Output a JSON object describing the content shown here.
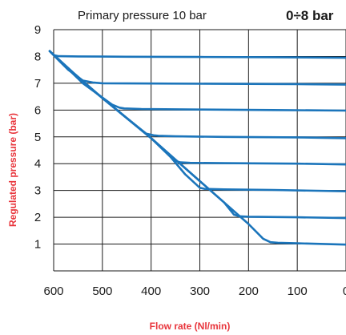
{
  "chart_data": {
    "type": "line",
    "title": "Primary pressure 10 bar",
    "subtitle": "0÷8 bar",
    "xlabel": "Flow rate (Nl/min)",
    "ylabel": "Regulated pressure (bar)",
    "xlim": [
      600,
      0
    ],
    "ylim": [
      0,
      9
    ],
    "x_ticks": [
      "600",
      "500",
      "400",
      "300",
      "200",
      "100",
      "0"
    ],
    "y_ticks": [
      "1",
      "2",
      "3",
      "4",
      "5",
      "6",
      "7",
      "8",
      "9"
    ],
    "grid": true,
    "colors": {
      "series": "#1b75bb",
      "axis_label": "#e8343b",
      "grid": "#1a1a1a"
    },
    "series": [
      {
        "x": [
          608,
          600,
          590,
          550,
          450,
          300,
          150,
          0
        ],
        "y": [
          8.2,
          8.05,
          8.01,
          8.0,
          7.99,
          7.98,
          7.97,
          7.95
        ]
      },
      {
        "x": [
          608,
          590,
          570,
          540,
          520,
          500,
          400,
          250,
          100,
          0
        ],
        "y": [
          8.2,
          7.86,
          7.5,
          7.1,
          7.03,
          7.0,
          6.99,
          6.98,
          6.97,
          6.95
        ]
      },
      {
        "x": [
          608,
          580,
          540,
          510,
          480,
          465,
          455,
          420,
          300,
          150,
          0
        ],
        "y": [
          8.2,
          7.7,
          7.0,
          6.6,
          6.2,
          6.09,
          6.06,
          6.04,
          6.02,
          6.0,
          5.98
        ]
      },
      {
        "x": [
          608,
          560,
          500,
          450,
          410,
          395,
          385,
          350,
          250,
          100,
          0
        ],
        "y": [
          8.2,
          7.4,
          6.45,
          5.7,
          5.12,
          5.06,
          5.04,
          5.02,
          5.0,
          4.98,
          4.95
        ]
      },
      {
        "x": [
          608,
          550,
          500,
          450,
          400,
          370,
          350,
          340,
          320,
          250,
          100,
          0
        ],
        "y": [
          8.2,
          7.2,
          6.45,
          5.7,
          4.95,
          4.45,
          4.1,
          4.05,
          4.03,
          4.02,
          4.0,
          3.97
        ]
      },
      {
        "x": [
          608,
          550,
          500,
          450,
          400,
          360,
          330,
          300,
          290,
          250,
          150,
          0
        ],
        "y": [
          8.2,
          7.2,
          6.45,
          5.7,
          4.95,
          4.25,
          3.6,
          3.1,
          3.06,
          3.04,
          3.02,
          2.97
        ]
      },
      {
        "x": [
          608,
          550,
          500,
          450,
          400,
          350,
          300,
          250,
          230,
          220,
          200,
          100,
          0
        ],
        "y": [
          8.2,
          7.2,
          6.45,
          5.7,
          4.95,
          4.15,
          3.35,
          2.55,
          2.1,
          2.04,
          2.02,
          2.0,
          1.97
        ]
      },
      {
        "x": [
          608,
          550,
          500,
          450,
          400,
          350,
          300,
          250,
          200,
          170,
          155,
          140,
          100,
          0
        ],
        "y": [
          8.2,
          7.2,
          6.45,
          5.7,
          4.95,
          4.15,
          3.35,
          2.55,
          1.75,
          1.2,
          1.07,
          1.05,
          1.03,
          0.98
        ]
      }
    ]
  }
}
